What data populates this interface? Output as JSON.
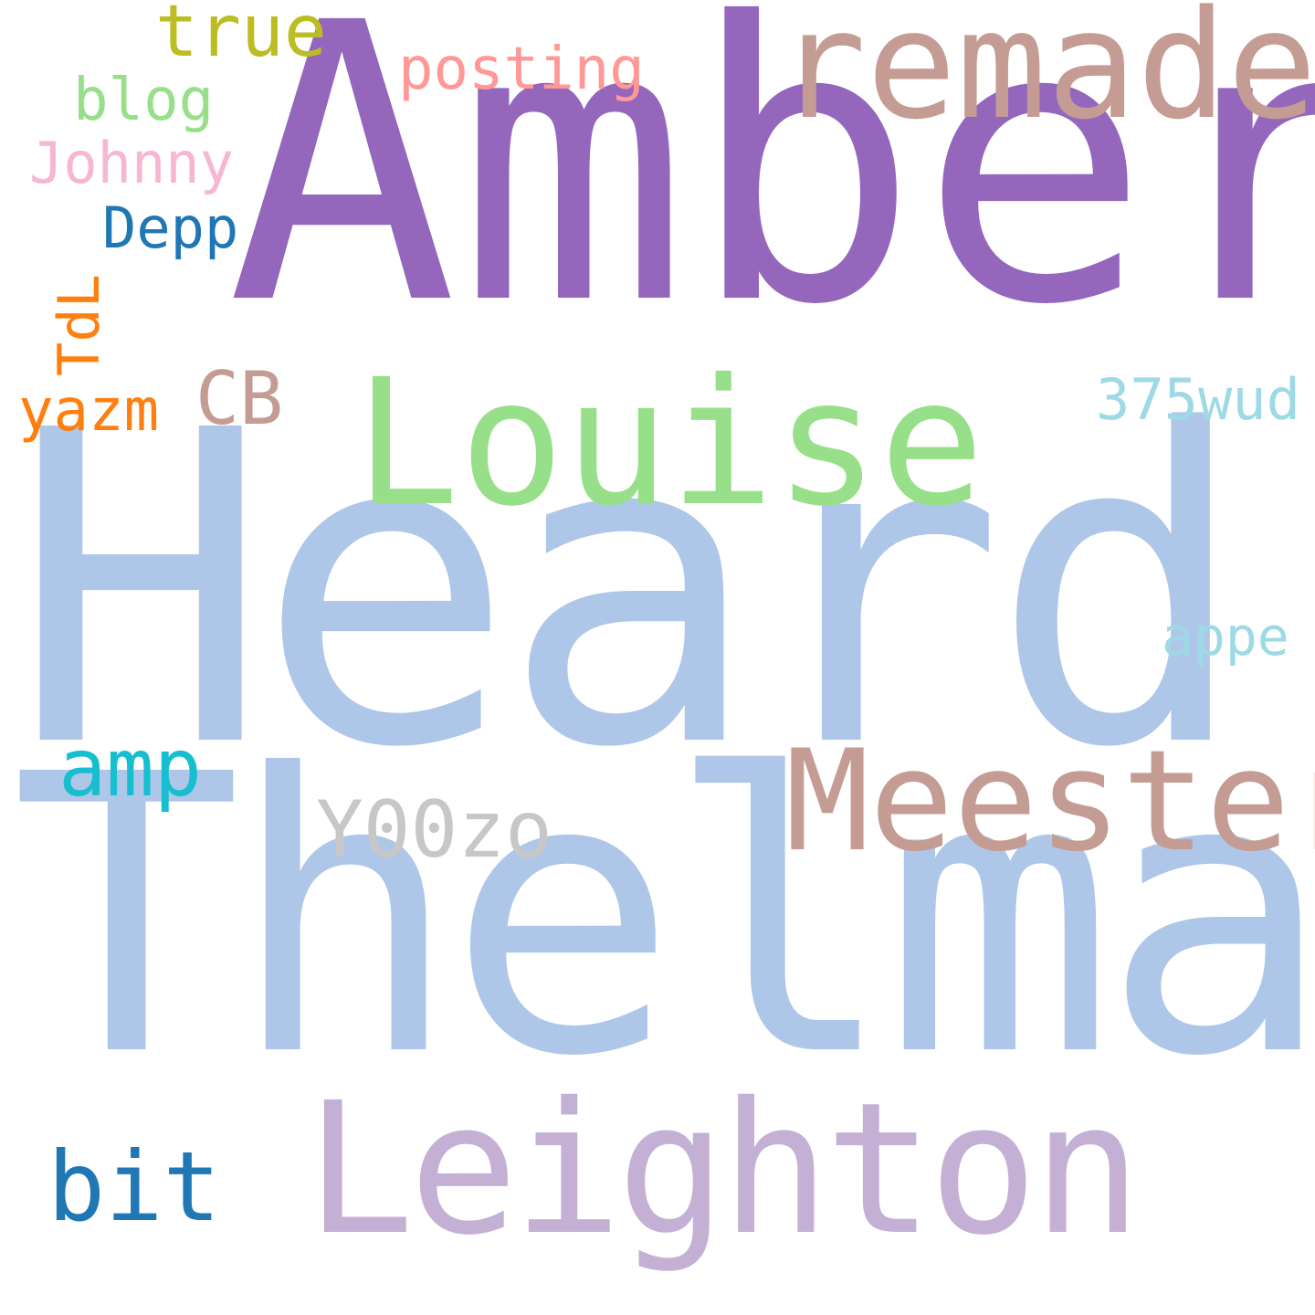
{
  "word_cloud": {
    "words": [
      {
        "id": "amber",
        "text": "Amber",
        "color": "#9467bd"
      },
      {
        "id": "heard",
        "text": "Heard",
        "color": "#aec7e8"
      },
      {
        "id": "thelma",
        "text": "Thelma",
        "color": "#aec7e8"
      },
      {
        "id": "louise",
        "text": "Louise",
        "color": "#98df8a"
      },
      {
        "id": "leighton",
        "text": "Leighton",
        "color": "#c5b0d5"
      },
      {
        "id": "meester",
        "text": "Meester",
        "color": "#c49c94"
      },
      {
        "id": "remade",
        "text": "remade",
        "color": "#c49c94"
      },
      {
        "id": "y00zo",
        "text": "Y00zo",
        "color": "#c7c7c7"
      },
      {
        "id": "bit",
        "text": "bit",
        "color": "#1f77b4"
      },
      {
        "id": "amp",
        "text": "amp",
        "color": "#17becf"
      },
      {
        "id": "true",
        "text": "true",
        "color": "#bcbd22"
      },
      {
        "id": "posting",
        "text": "posting",
        "color": "#ff9896"
      },
      {
        "id": "blog",
        "text": "blog",
        "color": "#98df8a"
      },
      {
        "id": "johnny",
        "text": "Johnny",
        "color": "#f7b6d2"
      },
      {
        "id": "depp",
        "text": "Depp",
        "color": "#1f77b4"
      },
      {
        "id": "tdl",
        "text": "TdL",
        "color": "#ff7f0e"
      },
      {
        "id": "yazm",
        "text": "yazm",
        "color": "#ff7f0e"
      },
      {
        "id": "cb",
        "text": "CB",
        "color": "#c49c94"
      },
      {
        "id": "375wud",
        "text": "375wud",
        "color": "#9edae5"
      },
      {
        "id": "appe",
        "text": "appe",
        "color": "#9edae5"
      }
    ]
  }
}
